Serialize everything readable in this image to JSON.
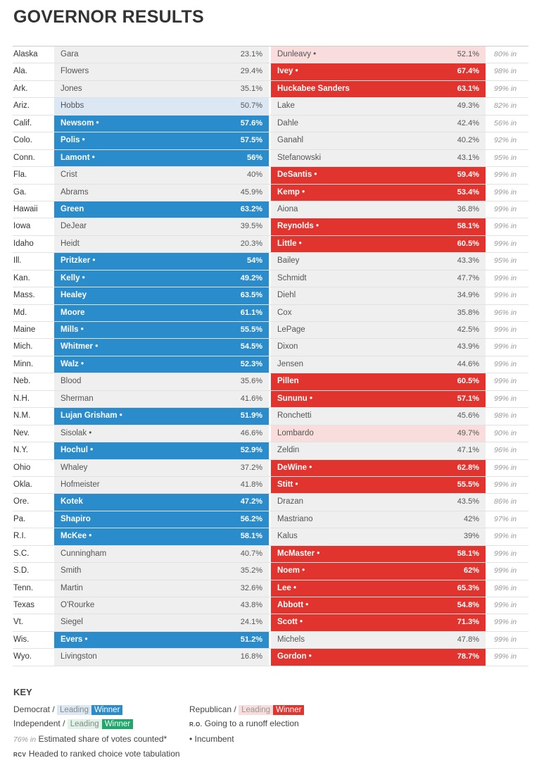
{
  "title": "GOVERNOR RESULTS",
  "rows": [
    {
      "state": "Alaska",
      "dem": "Gara",
      "dem_pct": "23.1%",
      "dem_status": "",
      "rep": "Dunleavy •",
      "rep_pct": "52.1%",
      "rep_status": "lead-r",
      "reporting": "80% in"
    },
    {
      "state": "Ala.",
      "dem": "Flowers",
      "dem_pct": "29.4%",
      "dem_status": "",
      "rep": "Ivey •",
      "rep_pct": "67.4%",
      "rep_status": "win-r",
      "reporting": "98% in"
    },
    {
      "state": "Ark.",
      "dem": "Jones",
      "dem_pct": "35.1%",
      "dem_status": "",
      "rep": "Huckabee Sanders",
      "rep_pct": "63.1%",
      "rep_status": "win-r",
      "reporting": "99% in"
    },
    {
      "state": "Ariz.",
      "dem": "Hobbs",
      "dem_pct": "50.7%",
      "dem_status": "lead-d",
      "rep": "Lake",
      "rep_pct": "49.3%",
      "rep_status": "",
      "reporting": "82% in"
    },
    {
      "state": "Calif.",
      "dem": "Newsom •",
      "dem_pct": "57.6%",
      "dem_status": "win-d",
      "rep": "Dahle",
      "rep_pct": "42.4%",
      "rep_status": "",
      "reporting": "56% in"
    },
    {
      "state": "Colo.",
      "dem": "Polis •",
      "dem_pct": "57.5%",
      "dem_status": "win-d",
      "rep": "Ganahl",
      "rep_pct": "40.2%",
      "rep_status": "",
      "reporting": "92% in"
    },
    {
      "state": "Conn.",
      "dem": "Lamont •",
      "dem_pct": "56%",
      "dem_status": "win-d",
      "rep": "Stefanowski",
      "rep_pct": "43.1%",
      "rep_status": "",
      "reporting": "95% in"
    },
    {
      "state": "Fla.",
      "dem": "Crist",
      "dem_pct": "40%",
      "dem_status": "",
      "rep": "DeSantis •",
      "rep_pct": "59.4%",
      "rep_status": "win-r",
      "reporting": "99% in"
    },
    {
      "state": "Ga.",
      "dem": "Abrams",
      "dem_pct": "45.9%",
      "dem_status": "",
      "rep": "Kemp •",
      "rep_pct": "53.4%",
      "rep_status": "win-r",
      "reporting": "99% in"
    },
    {
      "state": "Hawaii",
      "dem": "Green",
      "dem_pct": "63.2%",
      "dem_status": "win-d",
      "rep": "Aiona",
      "rep_pct": "36.8%",
      "rep_status": "",
      "reporting": "99% in"
    },
    {
      "state": "Iowa",
      "dem": "DeJear",
      "dem_pct": "39.5%",
      "dem_status": "",
      "rep": "Reynolds •",
      "rep_pct": "58.1%",
      "rep_status": "win-r",
      "reporting": "99% in"
    },
    {
      "state": "Idaho",
      "dem": "Heidt",
      "dem_pct": "20.3%",
      "dem_status": "",
      "rep": "Little •",
      "rep_pct": "60.5%",
      "rep_status": "win-r",
      "reporting": "99% in"
    },
    {
      "state": "Ill.",
      "dem": "Pritzker •",
      "dem_pct": "54%",
      "dem_status": "win-d",
      "rep": "Bailey",
      "rep_pct": "43.3%",
      "rep_status": "",
      "reporting": "95% in"
    },
    {
      "state": "Kan.",
      "dem": "Kelly •",
      "dem_pct": "49.2%",
      "dem_status": "win-d",
      "rep": "Schmidt",
      "rep_pct": "47.7%",
      "rep_status": "",
      "reporting": "99% in"
    },
    {
      "state": "Mass.",
      "dem": "Healey",
      "dem_pct": "63.5%",
      "dem_status": "win-d",
      "rep": "Diehl",
      "rep_pct": "34.9%",
      "rep_status": "",
      "reporting": "99% in"
    },
    {
      "state": "Md.",
      "dem": "Moore",
      "dem_pct": "61.1%",
      "dem_status": "win-d",
      "rep": "Cox",
      "rep_pct": "35.8%",
      "rep_status": "",
      "reporting": "96% in"
    },
    {
      "state": "Maine",
      "dem": "Mills •",
      "dem_pct": "55.5%",
      "dem_status": "win-d",
      "rep": "LePage",
      "rep_pct": "42.5%",
      "rep_status": "",
      "reporting": "99% in"
    },
    {
      "state": "Mich.",
      "dem": "Whitmer •",
      "dem_pct": "54.5%",
      "dem_status": "win-d",
      "rep": "Dixon",
      "rep_pct": "43.9%",
      "rep_status": "",
      "reporting": "99% in"
    },
    {
      "state": "Minn.",
      "dem": "Walz •",
      "dem_pct": "52.3%",
      "dem_status": "win-d",
      "rep": "Jensen",
      "rep_pct": "44.6%",
      "rep_status": "",
      "reporting": "99% in"
    },
    {
      "state": "Neb.",
      "dem": "Blood",
      "dem_pct": "35.6%",
      "dem_status": "",
      "rep": "Pillen",
      "rep_pct": "60.5%",
      "rep_status": "win-r",
      "reporting": "99% in"
    },
    {
      "state": "N.H.",
      "dem": "Sherman",
      "dem_pct": "41.6%",
      "dem_status": "",
      "rep": "Sununu •",
      "rep_pct": "57.1%",
      "rep_status": "win-r",
      "reporting": "99% in"
    },
    {
      "state": "N.M.",
      "dem": "Lujan Grisham •",
      "dem_pct": "51.9%",
      "dem_status": "win-d",
      "rep": "Ronchetti",
      "rep_pct": "45.6%",
      "rep_status": "",
      "reporting": "98% in"
    },
    {
      "state": "Nev.",
      "dem": "Sisolak •",
      "dem_pct": "46.6%",
      "dem_status": "",
      "rep": "Lombardo",
      "rep_pct": "49.7%",
      "rep_status": "lead-r",
      "reporting": "90% in"
    },
    {
      "state": "N.Y.",
      "dem": "Hochul •",
      "dem_pct": "52.9%",
      "dem_status": "win-d",
      "rep": "Zeldin",
      "rep_pct": "47.1%",
      "rep_status": "",
      "reporting": "96% in"
    },
    {
      "state": "Ohio",
      "dem": "Whaley",
      "dem_pct": "37.2%",
      "dem_status": "",
      "rep": "DeWine •",
      "rep_pct": "62.8%",
      "rep_status": "win-r",
      "reporting": "99% in"
    },
    {
      "state": "Okla.",
      "dem": "Hofmeister",
      "dem_pct": "41.8%",
      "dem_status": "",
      "rep": "Stitt •",
      "rep_pct": "55.5%",
      "rep_status": "win-r",
      "reporting": "99% in"
    },
    {
      "state": "Ore.",
      "dem": "Kotek",
      "dem_pct": "47.2%",
      "dem_status": "win-d",
      "rep": "Drazan",
      "rep_pct": "43.5%",
      "rep_status": "",
      "reporting": "86% in"
    },
    {
      "state": "Pa.",
      "dem": "Shapiro",
      "dem_pct": "56.2%",
      "dem_status": "win-d",
      "rep": "Mastriano",
      "rep_pct": "42%",
      "rep_status": "",
      "reporting": "97% in"
    },
    {
      "state": "R.I.",
      "dem": "McKee •",
      "dem_pct": "58.1%",
      "dem_status": "win-d",
      "rep": "Kalus",
      "rep_pct": "39%",
      "rep_status": "",
      "reporting": "99% in"
    },
    {
      "state": "S.C.",
      "dem": "Cunningham",
      "dem_pct": "40.7%",
      "dem_status": "",
      "rep": "McMaster •",
      "rep_pct": "58.1%",
      "rep_status": "win-r",
      "reporting": "99% in"
    },
    {
      "state": "S.D.",
      "dem": "Smith",
      "dem_pct": "35.2%",
      "dem_status": "",
      "rep": "Noem •",
      "rep_pct": "62%",
      "rep_status": "win-r",
      "reporting": "99% in"
    },
    {
      "state": "Tenn.",
      "dem": "Martin",
      "dem_pct": "32.6%",
      "dem_status": "",
      "rep": "Lee •",
      "rep_pct": "65.3%",
      "rep_status": "win-r",
      "reporting": "98% in"
    },
    {
      "state": "Texas",
      "dem": "O'Rourke",
      "dem_pct": "43.8%",
      "dem_status": "",
      "rep": "Abbott •",
      "rep_pct": "54.8%",
      "rep_status": "win-r",
      "reporting": "99% in"
    },
    {
      "state": "Vt.",
      "dem": "Siegel",
      "dem_pct": "24.1%",
      "dem_status": "",
      "rep": "Scott •",
      "rep_pct": "71.3%",
      "rep_status": "win-r",
      "reporting": "99% in"
    },
    {
      "state": "Wis.",
      "dem": "Evers •",
      "dem_pct": "51.2%",
      "dem_status": "win-d",
      "rep": "Michels",
      "rep_pct": "47.8%",
      "rep_status": "",
      "reporting": "99% in"
    },
    {
      "state": "Wyo.",
      "dem": "Livingston",
      "dem_pct": "16.8%",
      "dem_status": "",
      "rep": "Gordon •",
      "rep_pct": "78.7%",
      "rep_status": "win-r",
      "reporting": "99% in"
    }
  ],
  "key": {
    "title": "KEY",
    "democrat": "Democrat /",
    "independent": "Independent /",
    "republican": "Republican /",
    "leading": "Leading",
    "winner": "Winner",
    "share_sample": "76% in",
    "share_text": "Estimated share of votes counted*",
    "rcv_abbr": "RCV",
    "rcv_text": "Headed to ranked choice vote tabulation",
    "ro_abbr": "R.O.",
    "ro_text": "Going to a runoff election",
    "incumbent": "• Incumbent"
  },
  "colors": {
    "dem_winner": "#2b8ccb",
    "dem_leading": "#dbe8f4",
    "rep_winner": "#e2342f",
    "rep_leading": "#f9dcdc",
    "ind_winner": "#1fa86b",
    "ind_leading": "#dff3e8",
    "neutral": "#efefef"
  }
}
